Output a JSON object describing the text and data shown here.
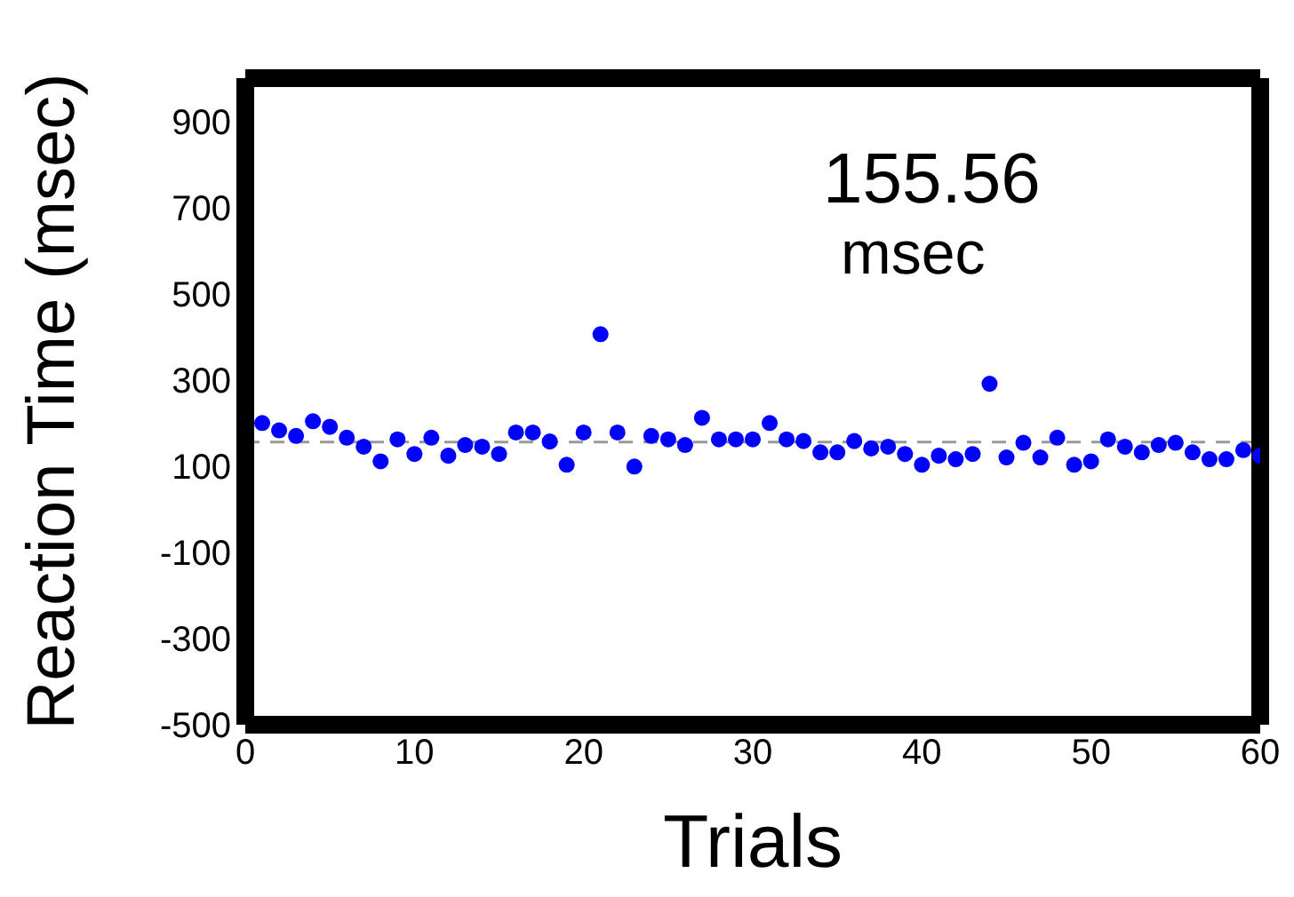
{
  "chart_data": {
    "type": "scatter",
    "xlabel": "Trials",
    "ylabel": "Reaction Time (msec)",
    "x": [
      1,
      2,
      3,
      4,
      5,
      6,
      7,
      8,
      9,
      10,
      11,
      12,
      13,
      14,
      15,
      16,
      17,
      18,
      19,
      20,
      21,
      22,
      23,
      24,
      25,
      26,
      27,
      28,
      29,
      30,
      31,
      32,
      33,
      34,
      35,
      36,
      37,
      38,
      39,
      40,
      41,
      42,
      43,
      44,
      45,
      46,
      47,
      48,
      49,
      50,
      51,
      52,
      53,
      54,
      55,
      56,
      57,
      58,
      59,
      60
    ],
    "series": [
      {
        "color": "#0000ff",
        "values": [
          200,
          183,
          170,
          204,
          191,
          166,
          145,
          111,
          162,
          128,
          166,
          124,
          149,
          145,
          128,
          178,
          178,
          157,
          103,
          178,
          406,
          178,
          99,
          170,
          162,
          149,
          212,
          162,
          162,
          162,
          200,
          162,
          158,
          132,
          132,
          158,
          141,
          145,
          128,
          103,
          124,
          116,
          128,
          291,
          120,
          154,
          120,
          166,
          103,
          111,
          162,
          145,
          132,
          149,
          154,
          132,
          116,
          116,
          137,
          124
        ]
      }
    ],
    "xlim": [
      0,
      60
    ],
    "xticks": [
      0,
      10,
      20,
      30,
      40,
      50,
      60
    ],
    "ylim": [
      -500,
      1000
    ],
    "yticks": [
      -500,
      -300,
      -100,
      100,
      300,
      500,
      700,
      900
    ],
    "ref_lines": [
      {
        "axis": "y",
        "value": 155.56,
        "color": "#999999",
        "line_style": "dashed"
      }
    ],
    "annotations": [
      "155.56\nmsec"
    ],
    "marker": "circle",
    "legend": false
  }
}
